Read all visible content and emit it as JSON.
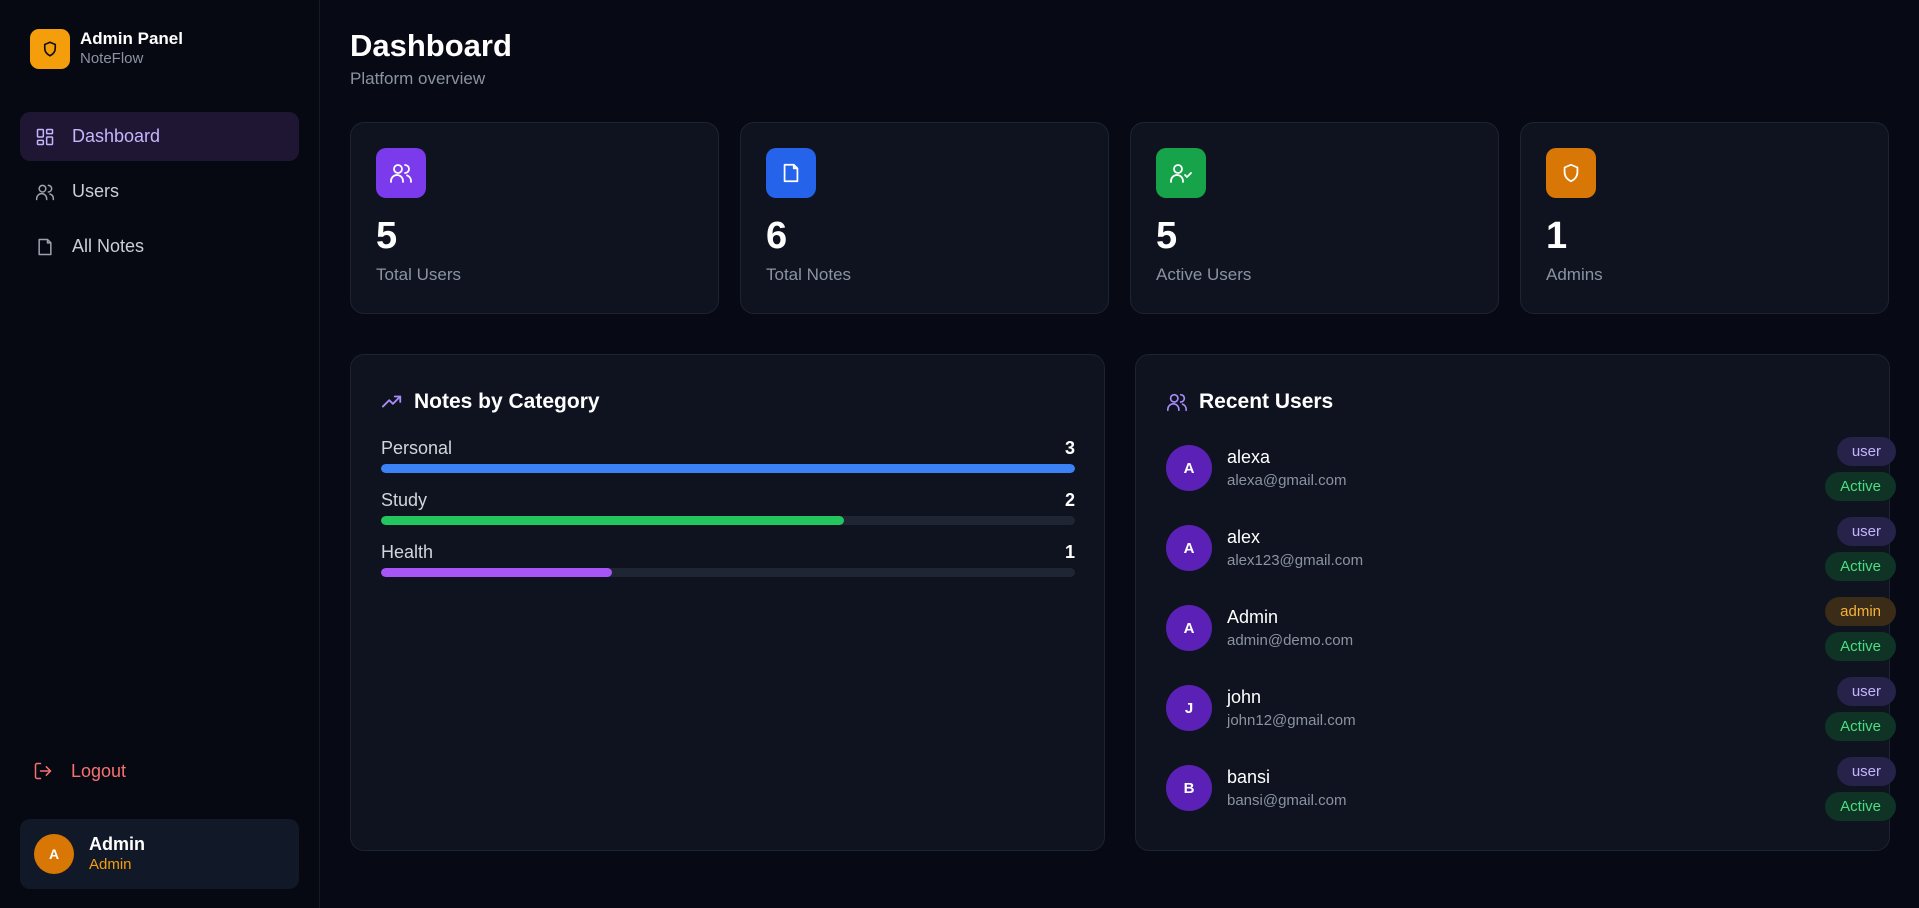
{
  "brand": {
    "title": "Admin Panel",
    "subtitle": "NoteFlow",
    "accent": "#f59e0b"
  },
  "nav": {
    "items": [
      {
        "label": "Dashboard",
        "icon": "grid-icon",
        "active": true
      },
      {
        "label": "Users",
        "icon": "users-icon",
        "active": false
      },
      {
        "label": "All Notes",
        "icon": "note-icon",
        "active": false
      }
    ],
    "logout_label": "Logout"
  },
  "current_user": {
    "initial": "A",
    "name": "Admin",
    "role": "Admin"
  },
  "header": {
    "title": "Dashboard",
    "subtitle": "Platform overview"
  },
  "stats": [
    {
      "value": "5",
      "label": "Total Users",
      "icon": "users-icon",
      "color": "#7c3aed"
    },
    {
      "value": "6",
      "label": "Total Notes",
      "icon": "note-icon",
      "color": "#2563eb"
    },
    {
      "value": "5",
      "label": "Active Users",
      "icon": "user-check-icon",
      "color": "#16a34a"
    },
    {
      "value": "1",
      "label": "Admins",
      "icon": "shield-icon",
      "color": "#d97706"
    }
  ],
  "categories_panel": {
    "title": "Notes by Category",
    "items": [
      {
        "name": "Personal",
        "count": "3",
        "fraction": 1.0,
        "color": "#3b82f6"
      },
      {
        "name": "Study",
        "count": "2",
        "fraction": 0.667,
        "color": "#22c55e"
      },
      {
        "name": "Health",
        "count": "1",
        "fraction": 0.333,
        "color": "#a855f7"
      }
    ]
  },
  "recent_users": {
    "title": "Recent Users",
    "users": [
      {
        "initial": "A",
        "name": "alexa",
        "email": "alexa@gmail.com",
        "role": "user",
        "status": "Active"
      },
      {
        "initial": "A",
        "name": "alex",
        "email": "alex123@gmail.com",
        "role": "user",
        "status": "Active"
      },
      {
        "initial": "A",
        "name": "Admin",
        "email": "admin@demo.com",
        "role": "admin",
        "status": "Active"
      },
      {
        "initial": "J",
        "name": "john",
        "email": "john12@gmail.com",
        "role": "user",
        "status": "Active"
      },
      {
        "initial": "B",
        "name": "bansi",
        "email": "bansi@gmail.com",
        "role": "user",
        "status": "Active"
      }
    ]
  }
}
